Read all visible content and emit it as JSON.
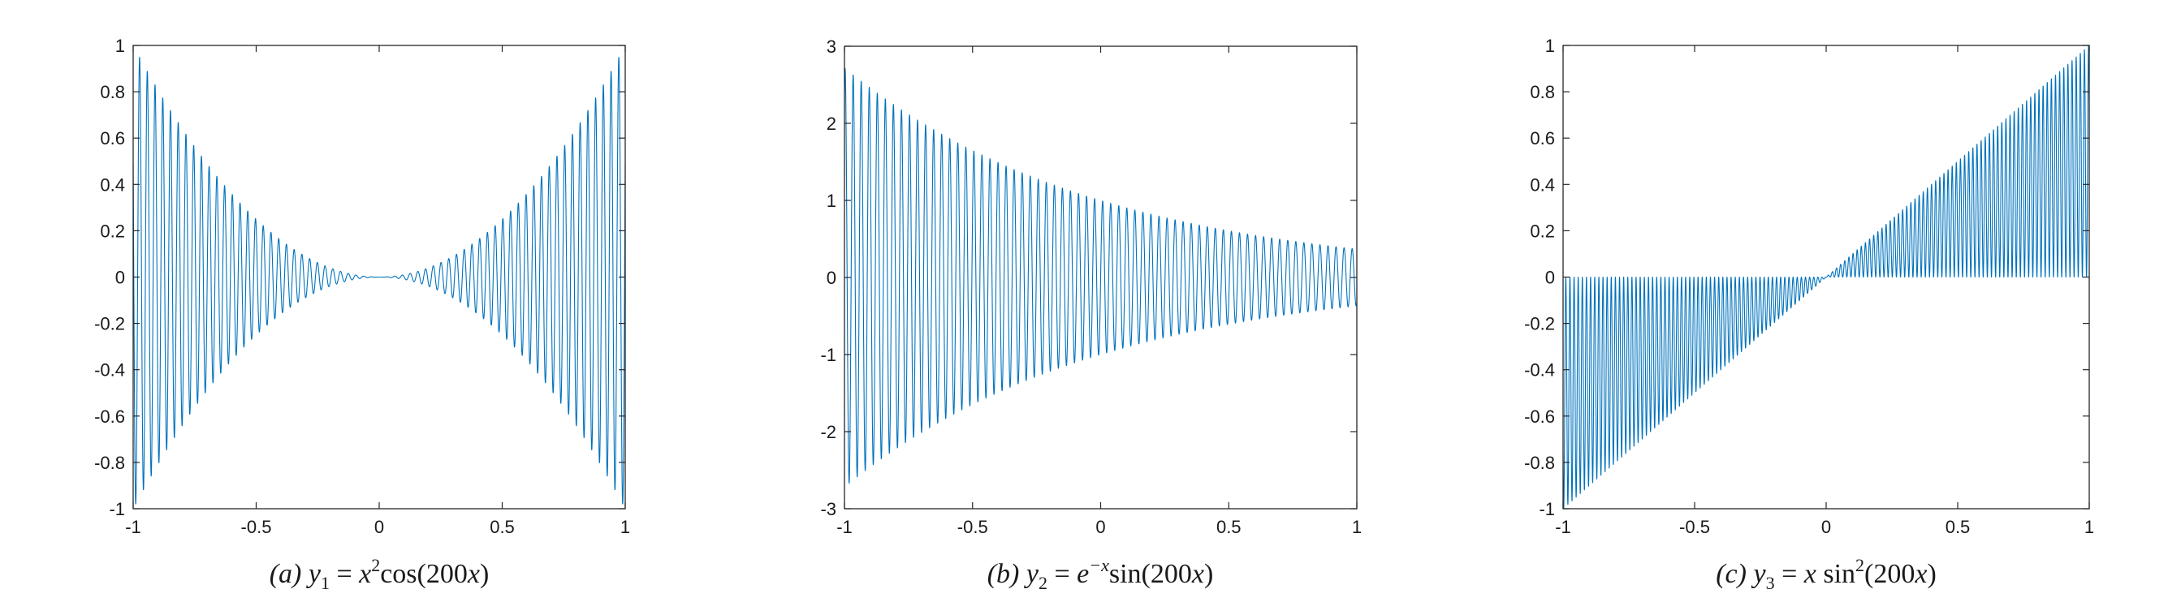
{
  "chart_data": [
    {
      "type": "line",
      "function": "x^2*cos(200x)",
      "x_range": [
        -1,
        1
      ],
      "xlim": [
        -1,
        1
      ],
      "ylim": [
        -1,
        1
      ],
      "xticks": [
        -1,
        -0.5,
        0,
        0.5,
        1
      ],
      "yticks": [
        -1,
        -0.8,
        -0.6,
        -0.4,
        -0.2,
        0,
        0.2,
        0.4,
        0.6,
        0.8,
        1
      ],
      "xtick_labels": [
        "-1",
        "-0.5",
        "0",
        "0.5",
        "1"
      ],
      "ytick_labels": [
        "-1",
        "-0.8",
        "-0.6",
        "-0.4",
        "-0.2",
        "0",
        "0.2",
        "0.4",
        "0.6",
        "0.8",
        "1"
      ],
      "caption": {
        "tag": "(a)",
        "lhs": "y",
        "sub": "1",
        "eq": " = ",
        "base": "x",
        "sup": "2",
        "rest": "cos(200",
        "var": "x",
        "close": ")"
      },
      "color": "#0072BD",
      "grid": false
    },
    {
      "type": "line",
      "function": "exp(-x)*sin(200x)",
      "x_range": [
        -1,
        1
      ],
      "xlim": [
        -1,
        1
      ],
      "ylim": [
        -3,
        3
      ],
      "xticks": [
        -1,
        -0.5,
        0,
        0.5,
        1
      ],
      "yticks": [
        -3,
        -2,
        -1,
        0,
        1,
        2,
        3
      ],
      "xtick_labels": [
        "-1",
        "-0.5",
        "0",
        "0.5",
        "1"
      ],
      "ytick_labels": [
        "-3",
        "-2",
        "-1",
        "0",
        "1",
        "2",
        "3"
      ],
      "caption": {
        "tag": "(b)",
        "lhs": "y",
        "sub": "2",
        "eq": " = ",
        "base": "e",
        "sup": "−x",
        "rest": "sin(200",
        "var": "x",
        "close": ")"
      },
      "color": "#0072BD",
      "grid": false
    },
    {
      "type": "line",
      "function": "x*sin(200x)^2",
      "x_range": [
        -1,
        1
      ],
      "xlim": [
        -1,
        1
      ],
      "ylim": [
        -1,
        1
      ],
      "xticks": [
        -1,
        -0.5,
        0,
        0.5,
        1
      ],
      "yticks": [
        -1,
        -0.8,
        -0.6,
        -0.4,
        -0.2,
        0,
        0.2,
        0.4,
        0.6,
        0.8,
        1
      ],
      "xtick_labels": [
        "-1",
        "-0.5",
        "0",
        "0.5",
        "1"
      ],
      "ytick_labels": [
        "-1",
        "-0.8",
        "-0.6",
        "-0.4",
        "-0.2",
        "0",
        "0.2",
        "0.4",
        "0.6",
        "0.8",
        "1"
      ],
      "caption": {
        "tag": "(c)",
        "lhs": "y",
        "sub": "3",
        "eq": " = ",
        "base": "x",
        "sup": "",
        "rest": " sin",
        "sup2": "2",
        "rest2": "(200",
        "var": "x",
        "close": ")"
      },
      "color": "#0072BD",
      "grid": false
    }
  ]
}
